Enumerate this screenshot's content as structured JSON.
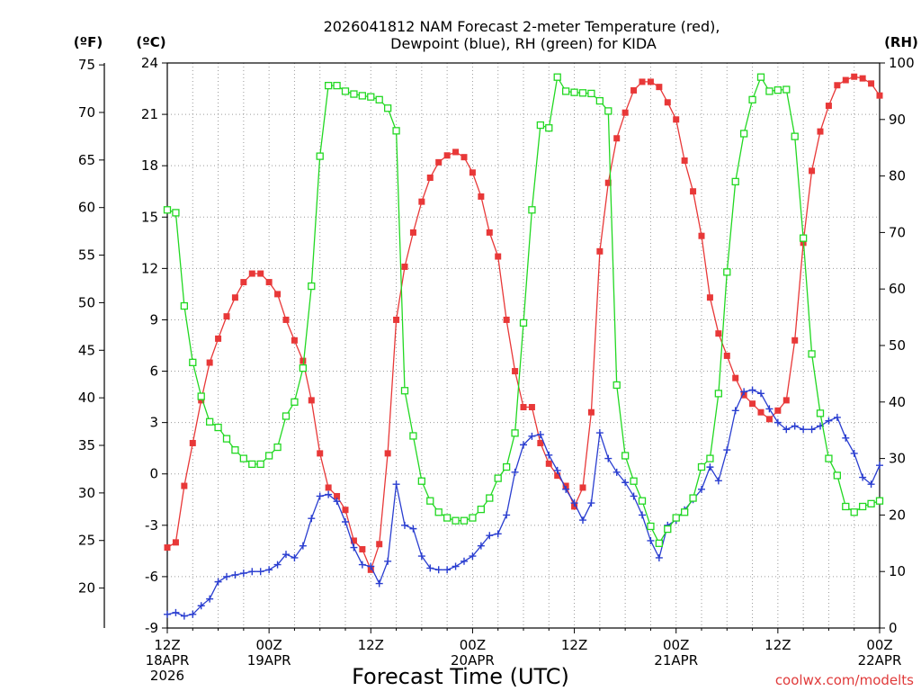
{
  "chart_data": {
    "type": "line",
    "title": [
      "2026041812 NAM Forecast 2-meter Temperature (red),",
      "Dewpoint (blue), RH (green) for KIDA"
    ],
    "xlabel": "Forecast Time (UTC)",
    "credit": "coolwx.com/modelts",
    "units": {
      "fahrenheit": "(ºF)",
      "celsius": "(ºC)",
      "rh": "(RH)"
    },
    "x_hours": [
      0,
      84
    ],
    "x_ticks": [
      {
        "hour": 0,
        "lines": [
          "12Z",
          "18APR",
          "2026"
        ]
      },
      {
        "hour": 12,
        "lines": [
          "00Z",
          "19APR"
        ]
      },
      {
        "hour": 24,
        "lines": [
          "12Z"
        ]
      },
      {
        "hour": 36,
        "lines": [
          "00Z",
          "20APR"
        ]
      },
      {
        "hour": 48,
        "lines": [
          "12Z"
        ]
      },
      {
        "hour": 60,
        "lines": [
          "00Z",
          "21APR"
        ]
      },
      {
        "hour": 72,
        "lines": [
          "12Z"
        ]
      },
      {
        "hour": 84,
        "lines": [
          "00Z",
          "22APR"
        ]
      }
    ],
    "celsius_axis": {
      "range": [
        -9,
        24
      ],
      "ticks": [
        "-9",
        "-6",
        "-3",
        "0",
        "3",
        "6",
        "9",
        "12",
        "15",
        "18",
        "21",
        "24"
      ]
    },
    "fahrenheit_axis": {
      "ticks": [
        "20",
        "25",
        "30",
        "35",
        "40",
        "45",
        "50",
        "55",
        "60",
        "65",
        "70",
        "75"
      ]
    },
    "rh_axis": {
      "range": [
        0,
        100
      ],
      "ticks": [
        "0",
        "10",
        "20",
        "30",
        "40",
        "50",
        "60",
        "70",
        "80",
        "90",
        "100"
      ]
    },
    "series": [
      {
        "name": "Temperature",
        "color": "#e83838",
        "marker": "filled-square",
        "axis": "celsius",
        "points": [
          [
            0,
            -4.3
          ],
          [
            1,
            -4.0
          ],
          [
            2,
            -0.7
          ],
          [
            3,
            1.8
          ],
          [
            4,
            4.3
          ],
          [
            5,
            6.5
          ],
          [
            6,
            7.9
          ],
          [
            7,
            9.2
          ],
          [
            8,
            10.3
          ],
          [
            9,
            11.2
          ],
          [
            10,
            11.7
          ],
          [
            11,
            11.7
          ],
          [
            12,
            11.2
          ],
          [
            13,
            10.5
          ],
          [
            14,
            9.0
          ],
          [
            15,
            7.8
          ],
          [
            16,
            6.6
          ],
          [
            17,
            4.3
          ],
          [
            18,
            1.2
          ],
          [
            19,
            -0.8
          ],
          [
            20,
            -1.3
          ],
          [
            21,
            -2.1
          ],
          [
            22,
            -3.9
          ],
          [
            23,
            -4.4
          ],
          [
            24,
            -5.6
          ],
          [
            25,
            -4.1
          ],
          [
            26,
            1.2
          ],
          [
            27,
            9.0
          ],
          [
            28,
            12.1
          ],
          [
            29,
            14.1
          ],
          [
            30,
            15.9
          ],
          [
            31,
            17.3
          ],
          [
            32,
            18.2
          ],
          [
            33,
            18.6
          ],
          [
            34,
            18.8
          ],
          [
            35,
            18.5
          ],
          [
            36,
            17.6
          ],
          [
            37,
            16.2
          ],
          [
            38,
            14.1
          ],
          [
            39,
            12.7
          ],
          [
            40,
            9.0
          ],
          [
            41,
            6.0
          ],
          [
            42,
            3.9
          ],
          [
            43,
            3.9
          ],
          [
            44,
            1.8
          ],
          [
            45,
            0.6
          ],
          [
            46,
            -0.1
          ],
          [
            47,
            -0.7
          ],
          [
            48,
            -1.9
          ],
          [
            49,
            -0.8
          ],
          [
            50,
            3.6
          ],
          [
            51,
            13.0
          ],
          [
            52,
            17.0
          ],
          [
            53,
            19.6
          ],
          [
            54,
            21.1
          ],
          [
            55,
            22.4
          ],
          [
            56,
            22.9
          ],
          [
            57,
            22.9
          ],
          [
            58,
            22.6
          ],
          [
            59,
            21.7
          ],
          [
            60,
            20.7
          ],
          [
            61,
            18.3
          ],
          [
            62,
            16.5
          ],
          [
            63,
            13.9
          ],
          [
            64,
            10.3
          ],
          [
            65,
            8.2
          ],
          [
            66,
            6.9
          ],
          [
            67,
            5.6
          ],
          [
            68,
            4.6
          ],
          [
            69,
            4.1
          ],
          [
            70,
            3.6
          ],
          [
            71,
            3.2
          ],
          [
            72,
            3.7
          ],
          [
            73,
            4.3
          ],
          [
            74,
            7.8
          ],
          [
            75,
            13.5
          ],
          [
            76,
            17.7
          ],
          [
            77,
            20.0
          ],
          [
            78,
            21.5
          ],
          [
            79,
            22.7
          ],
          [
            80,
            23.0
          ],
          [
            81,
            23.2
          ],
          [
            82,
            23.1
          ],
          [
            83,
            22.8
          ],
          [
            84,
            22.1
          ]
        ]
      },
      {
        "name": "Dewpoint",
        "color": "#2a3ed0",
        "marker": "plus",
        "axis": "celsius",
        "points": [
          [
            0,
            -8.2
          ],
          [
            1,
            -8.1
          ],
          [
            2,
            -8.3
          ],
          [
            3,
            -8.2
          ],
          [
            4,
            -7.7
          ],
          [
            5,
            -7.3
          ],
          [
            6,
            -6.3
          ],
          [
            7,
            -6.0
          ],
          [
            8,
            -5.9
          ],
          [
            9,
            -5.8
          ],
          [
            10,
            -5.7
          ],
          [
            11,
            -5.7
          ],
          [
            12,
            -5.6
          ],
          [
            13,
            -5.3
          ],
          [
            14,
            -4.7
          ],
          [
            15,
            -4.9
          ],
          [
            16,
            -4.2
          ],
          [
            17,
            -2.6
          ],
          [
            18,
            -1.3
          ],
          [
            19,
            -1.2
          ],
          [
            20,
            -1.6
          ],
          [
            21,
            -2.8
          ],
          [
            22,
            -4.3
          ],
          [
            23,
            -5.3
          ],
          [
            24,
            -5.4
          ],
          [
            25,
            -6.4
          ],
          [
            26,
            -5.1
          ],
          [
            27,
            -0.6
          ],
          [
            28,
            -3.0
          ],
          [
            29,
            -3.2
          ],
          [
            30,
            -4.8
          ],
          [
            31,
            -5.5
          ],
          [
            32,
            -5.6
          ],
          [
            33,
            -5.6
          ],
          [
            34,
            -5.4
          ],
          [
            35,
            -5.1
          ],
          [
            36,
            -4.8
          ],
          [
            37,
            -4.2
          ],
          [
            38,
            -3.6
          ],
          [
            39,
            -3.5
          ],
          [
            40,
            -2.4
          ],
          [
            41,
            0.1
          ],
          [
            42,
            1.7
          ],
          [
            43,
            2.2
          ],
          [
            44,
            2.3
          ],
          [
            45,
            1.1
          ],
          [
            46,
            0.2
          ],
          [
            47,
            -0.9
          ],
          [
            48,
            -1.7
          ],
          [
            49,
            -2.7
          ],
          [
            50,
            -1.7
          ],
          [
            51,
            2.4
          ],
          [
            52,
            0.9
          ],
          [
            53,
            0.1
          ],
          [
            54,
            -0.5
          ],
          [
            55,
            -1.3
          ],
          [
            56,
            -2.4
          ],
          [
            57,
            -3.9
          ],
          [
            58,
            -4.9
          ],
          [
            59,
            -3.0
          ],
          [
            60,
            -2.7
          ],
          [
            61,
            -2.1
          ],
          [
            62,
            -1.5
          ],
          [
            63,
            -0.9
          ],
          [
            64,
            0.4
          ],
          [
            65,
            -0.4
          ],
          [
            66,
            1.4
          ],
          [
            67,
            3.7
          ],
          [
            68,
            4.8
          ],
          [
            69,
            4.9
          ],
          [
            70,
            4.7
          ],
          [
            71,
            3.8
          ],
          [
            72,
            3.0
          ],
          [
            73,
            2.6
          ],
          [
            74,
            2.8
          ],
          [
            75,
            2.6
          ],
          [
            76,
            2.6
          ],
          [
            77,
            2.8
          ],
          [
            78,
            3.1
          ],
          [
            79,
            3.3
          ],
          [
            80,
            2.1
          ],
          [
            81,
            1.2
          ],
          [
            82,
            -0.2
          ],
          [
            83,
            -0.6
          ],
          [
            84,
            0.5
          ]
        ]
      },
      {
        "name": "RH",
        "color": "#22d822",
        "marker": "open-square",
        "axis": "rh",
        "points": [
          [
            0,
            74
          ],
          [
            1,
            73.5
          ],
          [
            2,
            57
          ],
          [
            3,
            47
          ],
          [
            4,
            41
          ],
          [
            5,
            36.5
          ],
          [
            6,
            35.5
          ],
          [
            7,
            33.5
          ],
          [
            8,
            31.5
          ],
          [
            9,
            30
          ],
          [
            10,
            29
          ],
          [
            11,
            29
          ],
          [
            12,
            30.5
          ],
          [
            13,
            32
          ],
          [
            14,
            37.5
          ],
          [
            15,
            40
          ],
          [
            16,
            46
          ],
          [
            17,
            60.5
          ],
          [
            18,
            83.5
          ],
          [
            19,
            96
          ],
          [
            20,
            96
          ],
          [
            21,
            95
          ],
          [
            22,
            94.5
          ],
          [
            23,
            94.2
          ],
          [
            24,
            94
          ],
          [
            25,
            93.5
          ],
          [
            26,
            92
          ],
          [
            27,
            88
          ],
          [
            28,
            42
          ],
          [
            29,
            34
          ],
          [
            30,
            26
          ],
          [
            31,
            22.5
          ],
          [
            32,
            20.5
          ],
          [
            33,
            19.5
          ],
          [
            34,
            19
          ],
          [
            35,
            19
          ],
          [
            36,
            19.5
          ],
          [
            37,
            21
          ],
          [
            38,
            23
          ],
          [
            39,
            26.5
          ],
          [
            40,
            28.5
          ],
          [
            41,
            34.5
          ],
          [
            42,
            54
          ],
          [
            43,
            74
          ],
          [
            44,
            89
          ],
          [
            45,
            88.5
          ],
          [
            46,
            97.5
          ],
          [
            47,
            95
          ],
          [
            48,
            94.8
          ],
          [
            49,
            94.7
          ],
          [
            50,
            94.6
          ],
          [
            51,
            93.3
          ],
          [
            52,
            91.5
          ],
          [
            53,
            43
          ],
          [
            54,
            30.5
          ],
          [
            55,
            26
          ],
          [
            56,
            22.5
          ],
          [
            57,
            18
          ],
          [
            58,
            15
          ],
          [
            59,
            17.5
          ],
          [
            60,
            19.5
          ],
          [
            61,
            20.5
          ],
          [
            62,
            23
          ],
          [
            63,
            28.5
          ],
          [
            64,
            30
          ],
          [
            65,
            41.5
          ],
          [
            66,
            63
          ],
          [
            67,
            79
          ],
          [
            68,
            87.5
          ],
          [
            69,
            93.5
          ],
          [
            70,
            97.5
          ],
          [
            71,
            95
          ],
          [
            72,
            95.2
          ],
          [
            73,
            95.3
          ],
          [
            74,
            87
          ],
          [
            75,
            69
          ],
          [
            76,
            48.5
          ],
          [
            77,
            38
          ],
          [
            78,
            30
          ],
          [
            79,
            27
          ],
          [
            80,
            21.5
          ],
          [
            81,
            20.5
          ],
          [
            82,
            21.5
          ],
          [
            83,
            22
          ],
          [
            84,
            22.5
          ]
        ]
      }
    ]
  }
}
